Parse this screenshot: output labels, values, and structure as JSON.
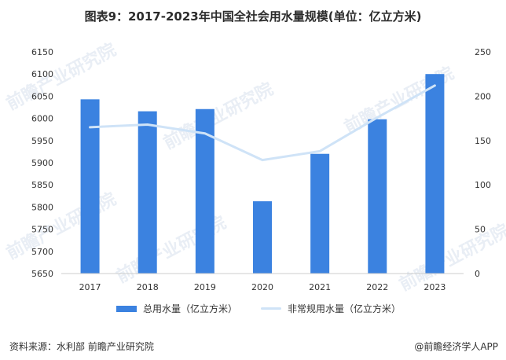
{
  "title": "图表9：2017-2023年中国全社会用水量规模(单位：亿立方米)",
  "source": "资料来源：水利部 前瞻产业研究院",
  "brand": "@前瞻经济学人APP",
  "watermark": "前瞻产业研究院",
  "colors": {
    "bar": "#3b82e0",
    "line": "#cfe3f7",
    "axis_text": "#333333",
    "baseline": "#cccccc"
  },
  "chart_data": {
    "type": "bar",
    "title": "图表9：2017-2023年中国全社会用水量规模(单位：亿立方米)",
    "categories": [
      "2017",
      "2018",
      "2019",
      "2020",
      "2021",
      "2022",
      "2023"
    ],
    "series": [
      {
        "name": "总用水量（亿立方米）",
        "type": "bar",
        "axis": "left",
        "values": [
          6043,
          6016,
          6021,
          5813,
          5920,
          5998,
          6100
        ]
      },
      {
        "name": "非常规用水量（亿立方米）",
        "type": "line",
        "axis": "right",
        "values": [
          165,
          168,
          158,
          128,
          138,
          176,
          212
        ]
      }
    ],
    "y_left": {
      "min": 5650,
      "max": 6150,
      "ticks": [
        5650,
        5700,
        5750,
        5800,
        5850,
        5900,
        5950,
        6000,
        6050,
        6100,
        6150
      ]
    },
    "y_right": {
      "min": 0,
      "max": 250,
      "ticks": [
        0,
        50,
        100,
        150,
        200,
        250
      ]
    },
    "grid": false,
    "legend_position": "bottom"
  }
}
